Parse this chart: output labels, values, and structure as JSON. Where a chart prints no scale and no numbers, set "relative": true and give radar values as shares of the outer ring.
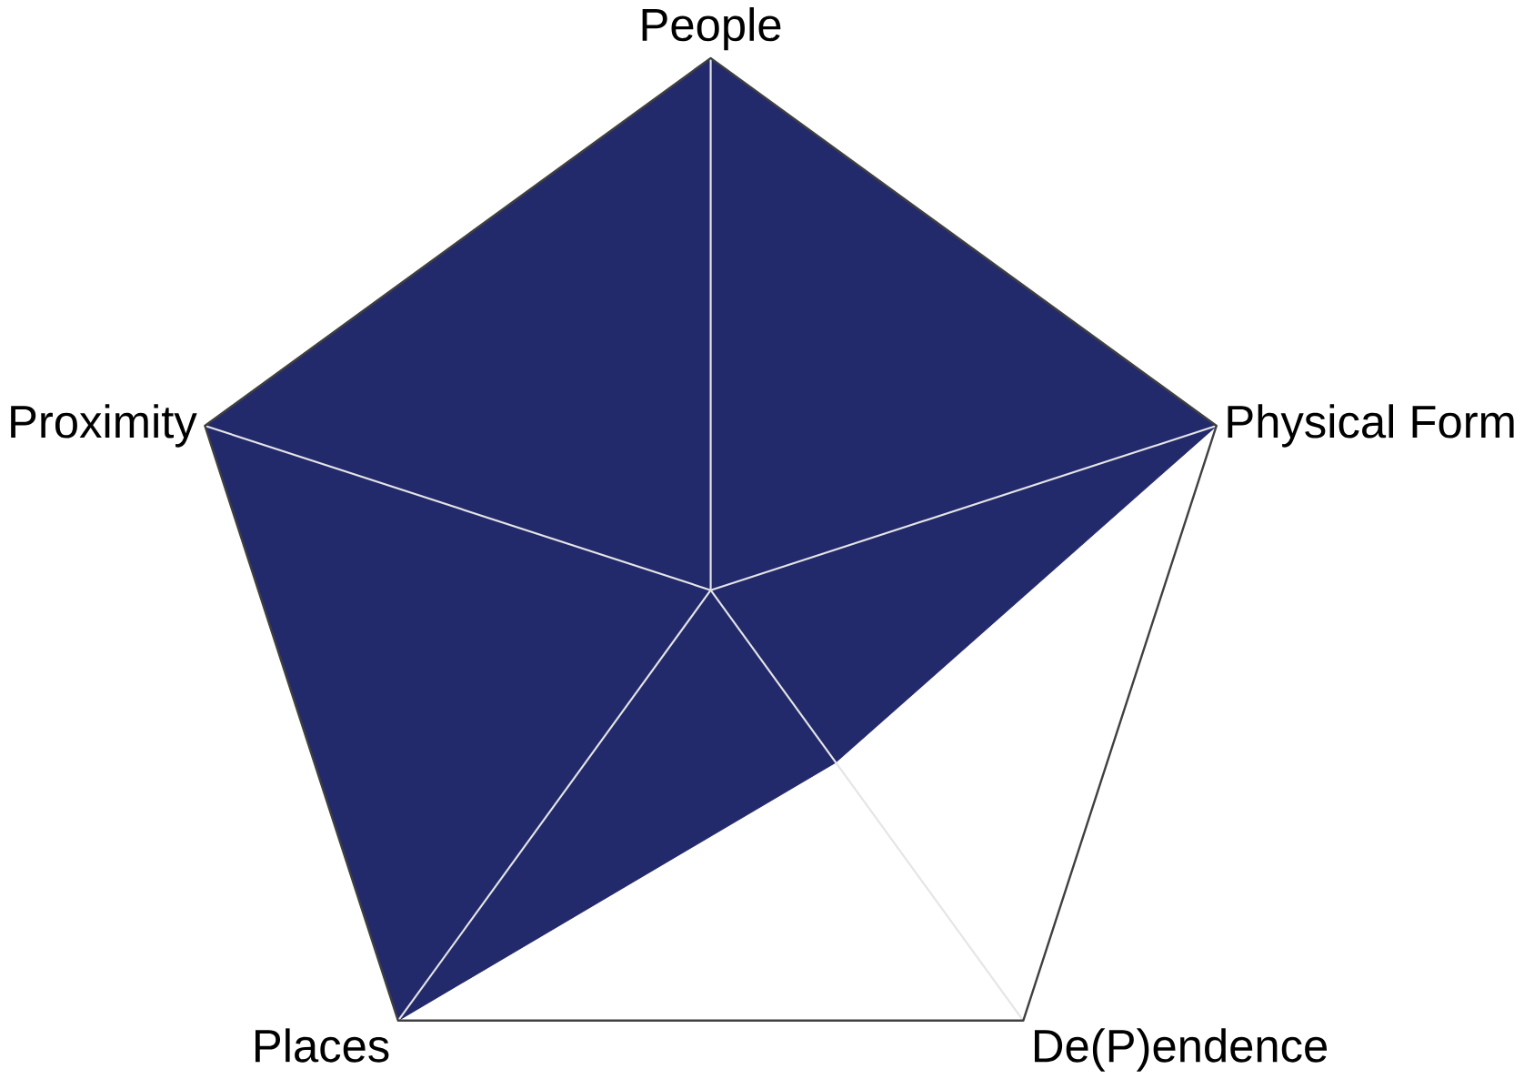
{
  "chart_data": {
    "type": "radar",
    "categories": [
      "People",
      "Physical Form",
      "De(P)endence",
      "Places",
      "Proximity"
    ],
    "relative": true,
    "grid": true,
    "series": [
      {
        "color": "#232a6c",
        "values": [
          1,
          1,
          0.4,
          1,
          1
        ]
      }
    ]
  }
}
